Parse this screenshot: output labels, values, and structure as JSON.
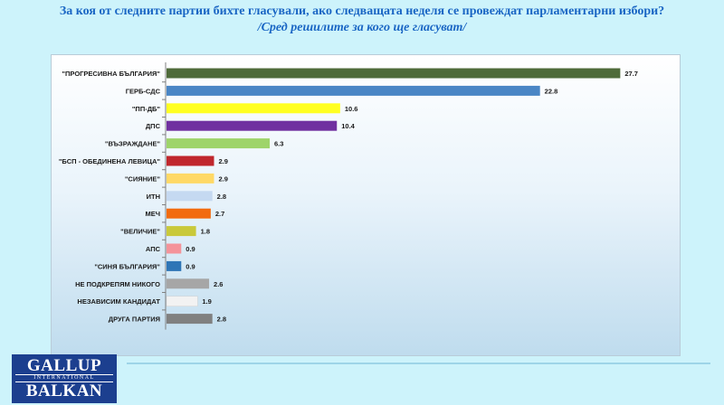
{
  "title": "За коя от следните партии бихте  гласували,  ако следващата неделя се провеждат парламентарни избори?",
  "subtitle": "/Сред решилите за кого ще гласуват/",
  "logo": {
    "line1": "GALLUP",
    "line2": "INTERNATIONAL",
    "line3": "BALKAN"
  },
  "chart_data": {
    "type": "bar",
    "orientation": "horizontal",
    "title": "",
    "xlabel": "",
    "ylabel": "",
    "xlim": [
      0,
      30
    ],
    "grid": false,
    "legend": "none",
    "categories": [
      "\"ПРОГРЕСИВНА БЪЛГАРИЯ\"",
      "ГЕРБ-СДС",
      "\"ПП-ДБ\"",
      "ДПС",
      "\"ВЪЗРАЖДАНЕ\"",
      "\"БСП - ОБЕДИНЕНА ЛЕВИЦА\"",
      "\"СИЯНИЕ\"",
      "ИТН",
      "МЕЧ",
      "\"ВЕЛИЧИЕ\"",
      "АПС",
      "\"СИНЯ БЪЛГАРИЯ\"",
      "НЕ ПОДКРЕПЯМ НИКОГО",
      "НЕЗАВИСИМ КАНДИДАТ",
      "ДРУГА ПАРТИЯ"
    ],
    "values": [
      27.7,
      22.8,
      10.6,
      10.4,
      6.3,
      2.9,
      2.9,
      2.8,
      2.7,
      1.8,
      0.9,
      0.9,
      2.6,
      1.9,
      2.8
    ],
    "value_labels": [
      "27.7",
      "22.8",
      "10.6",
      "10.4",
      "6.3",
      "2.9",
      "2.9",
      "2.8",
      "2.7",
      "1.8",
      "0.9",
      "0.9",
      "2.6",
      "1.9",
      "2.8"
    ],
    "colors": [
      "#4f6b3a",
      "#4a86c5",
      "#ffff22",
      "#7030a0",
      "#9ed46a",
      "#c0272d",
      "#ffd966",
      "#c5d9f1",
      "#f26b0f",
      "#c9c93a",
      "#f4939a",
      "#2e75b6",
      "#a6a6a6",
      "#f2f2f2",
      "#808080"
    ]
  }
}
